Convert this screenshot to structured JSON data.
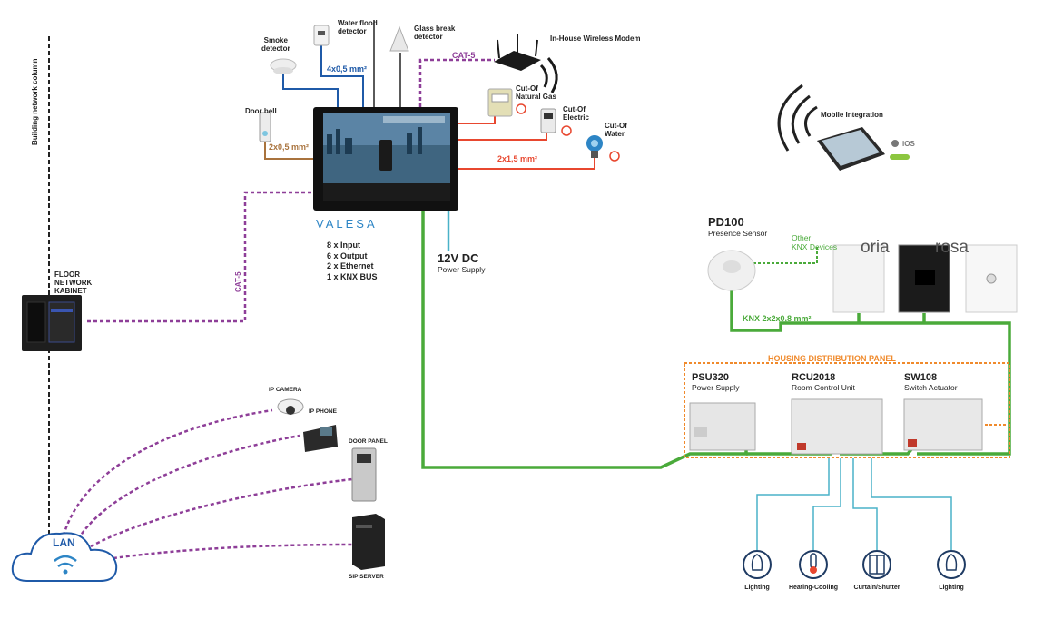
{
  "colors": {
    "green": "#4aaa3a",
    "purple": "#8e3e98",
    "blue": "#1f5aa8",
    "red": "#e8472f",
    "brown": "#a9733d",
    "cyan": "#4ab2c8",
    "orange": "#f08a2c",
    "dark": "#222222"
  },
  "labels": {
    "column": "Building network column",
    "floor_cabinet": [
      "FLOOR",
      "NETWORK",
      "KABINET"
    ],
    "cat5_left": "CAT-5",
    "cat5_top": "CAT-5",
    "door_bell": "Door bell",
    "wire_door_bell": "2x0,5 mm²",
    "smoke": [
      "Smoke",
      "detector"
    ],
    "water_flood": [
      "Water flood",
      "detector"
    ],
    "glass_break": [
      "Glass break",
      "detector"
    ],
    "wire_sensors": "4x0,5 mm²",
    "modem": "In-House Wireless Modem",
    "gas": [
      "Cut-Of",
      "Natural Gas"
    ],
    "electric": [
      "Cut-Of",
      "Electric"
    ],
    "water": [
      "Cut-Of",
      "Water"
    ],
    "wire_valves": "2x1,5 mm²",
    "brand": "VALESA",
    "panel_specs": [
      "8 x Input",
      "6 x Output",
      "2 x Ethernet",
      "1 x KNX BUS"
    ],
    "supply_title": "12V DC",
    "supply_sub": "Power Supply",
    "mobile": "Mobile Integration",
    "ios": "iOS",
    "pd_title": "PD100",
    "pd_sub": "Presence Sensor",
    "other_knx": [
      "Other",
      "KNX Devices"
    ],
    "oria": "oria",
    "rosa": "rosa",
    "knx_bus": "KNX 2x2x0,8 mm²",
    "housing": "HOUSING DISTRIBUTION PANEL",
    "psu_title": "PSU320",
    "psu_sub": "Power Supply",
    "rcu_title": "RCU2018",
    "rcu_sub": "Room Control Unit",
    "sw_title": "SW108",
    "sw_sub": "Switch Actuator",
    "ip_camera": "IP CAMERA",
    "ip_phone": "IP PHONE",
    "door_panel": "DOOR PANEL",
    "sip_server": "SIP SERVER",
    "lan": "LAN",
    "loads": [
      "Lighting",
      "Heating-Cooling",
      "Curtain/Shutter",
      "Lighting"
    ]
  },
  "icons": [
    "lighting-icon",
    "thermometer-icon",
    "curtain-icon",
    "lighting-icon",
    "wifi-icon",
    "apple-icon"
  ]
}
